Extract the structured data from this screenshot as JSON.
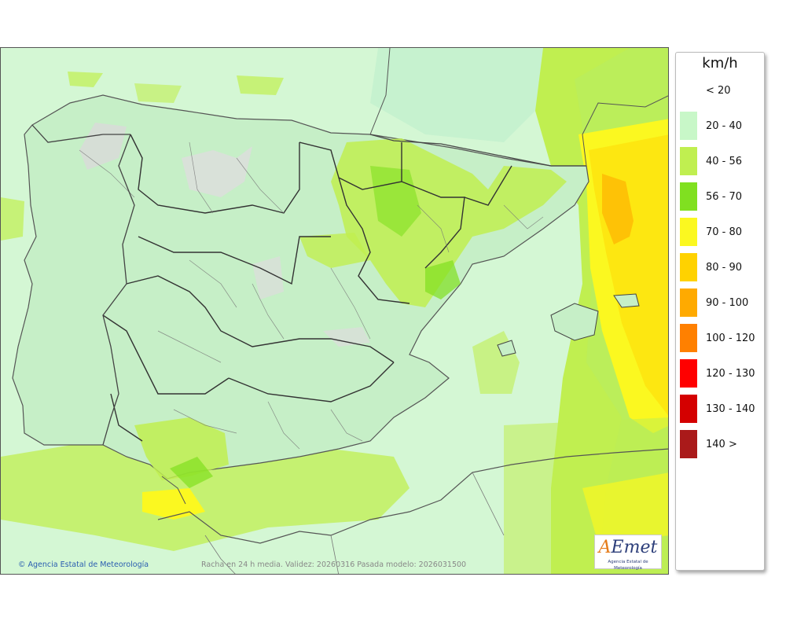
{
  "map": {
    "copyright": "Agencia Estatal de Meteorología",
    "validity_text": "Racha en 24 h media. Validez: 20260316 Pasada modelo: 2026031500",
    "logo": {
      "wordmark": "AEmet",
      "subtitle": "Agencia Estatal de Meteorología"
    }
  },
  "legend": {
    "unit": "km/h",
    "classes": [
      {
        "label": "< 20",
        "color": "#ffffff"
      },
      {
        "label": "20 - 40",
        "color": "#c8f7c8"
      },
      {
        "label": "40 - 56",
        "color": "#c0ef50"
      },
      {
        "label": "56 - 70",
        "color": "#80e020"
      },
      {
        "label": "70 - 80",
        "color": "#fbf820"
      },
      {
        "label": "80 - 90",
        "color": "#ffd200"
      },
      {
        "label": "90 - 100",
        "color": "#ffaa00"
      },
      {
        "label": "100 - 120",
        "color": "#ff8000"
      },
      {
        "label": "120 - 130",
        "color": "#ff0000"
      },
      {
        "label": "130 - 140",
        "color": "#d40000"
      },
      {
        "label": "140 >",
        "color": "#aa1a1a"
      }
    ]
  }
}
